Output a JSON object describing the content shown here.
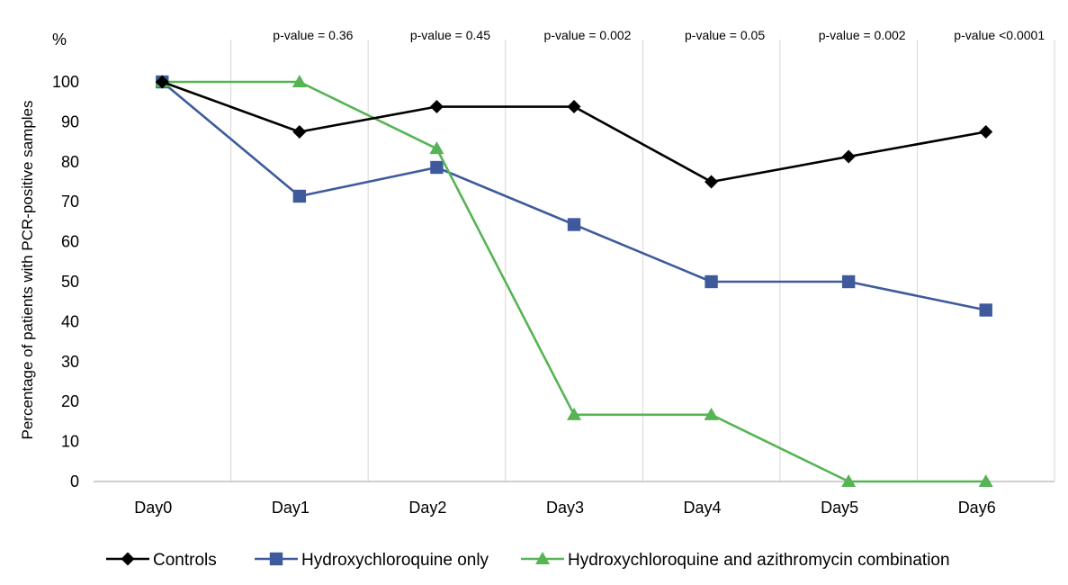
{
  "chart_data": {
    "type": "line",
    "title": "",
    "xlabel": "",
    "ylabel": "Percentage of patients with PCR-positive samples",
    "y_unit": "%",
    "ylim": [
      0,
      100
    ],
    "yticks": [
      0,
      10,
      20,
      30,
      40,
      50,
      60,
      70,
      80,
      90,
      100
    ],
    "categories": [
      "Day0",
      "Day1",
      "Day2",
      "Day3",
      "Day4",
      "Day5",
      "Day6"
    ],
    "p_values": [
      "",
      "p-value = 0.36",
      "p-value = 0.45",
      "p-value = 0.002",
      "p-value = 0.05",
      "p-value = 0.002",
      "p-value <0.0001"
    ],
    "legend_position": "bottom",
    "grid": "vertical",
    "series": [
      {
        "name": "Controls",
        "color": "#000000",
        "marker": "diamond",
        "values": [
          100,
          87.5,
          93.8,
          93.8,
          75,
          81.3,
          87.5
        ]
      },
      {
        "name": "Hydroxychloroquine only",
        "color": "#3f5a9c",
        "marker": "square",
        "values": [
          100,
          71.4,
          78.6,
          64.3,
          50,
          50,
          42.9
        ]
      },
      {
        "name": "Hydroxychloroquine and azithromycin combination",
        "color": "#56b454",
        "marker": "triangle",
        "values": [
          100,
          100,
          83.3,
          16.7,
          16.7,
          0,
          0
        ]
      }
    ]
  }
}
